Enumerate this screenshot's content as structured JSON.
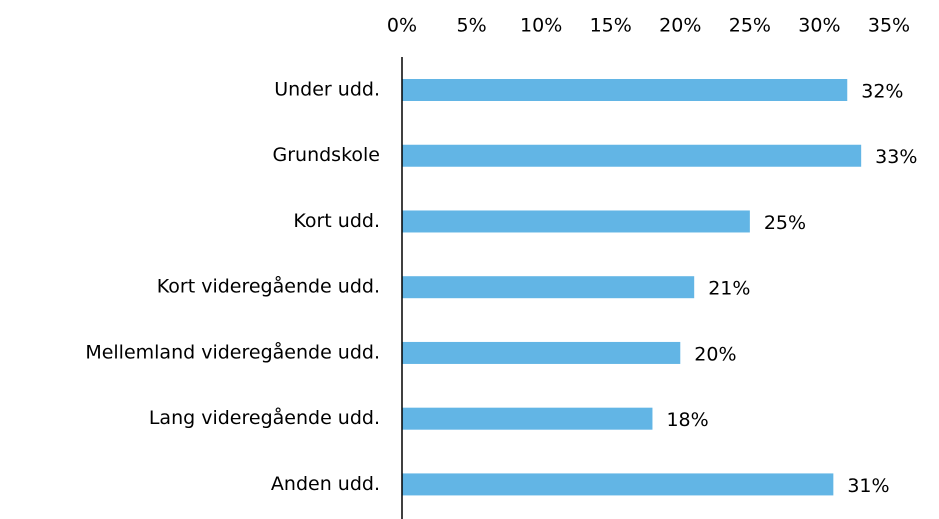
{
  "chart_data": {
    "type": "barh",
    "categories": [
      "Under udd.",
      "Grundskole",
      "Kort udd.",
      "Kort videregående udd.",
      "Mellemland videregående udd.",
      "Lang videregående udd.",
      "Anden udd."
    ],
    "values": [
      32,
      33,
      25,
      21,
      20,
      18,
      31
    ],
    "value_labels": [
      "32%",
      "33%",
      "25%",
      "21%",
      "20%",
      "18%",
      "31%"
    ],
    "color": "#62b5e5",
    "xlim": [
      0,
      35
    ],
    "xticks": [
      {
        "value": 0,
        "label": "0%"
      },
      {
        "value": 5,
        "label": "5%"
      },
      {
        "value": 10,
        "label": "10%"
      },
      {
        "value": 15,
        "label": "15%"
      },
      {
        "value": 20,
        "label": "20%"
      },
      {
        "value": 25,
        "label": "25%"
      },
      {
        "value": 30,
        "label": "30%"
      },
      {
        "value": 35,
        "label": "35%"
      }
    ]
  }
}
